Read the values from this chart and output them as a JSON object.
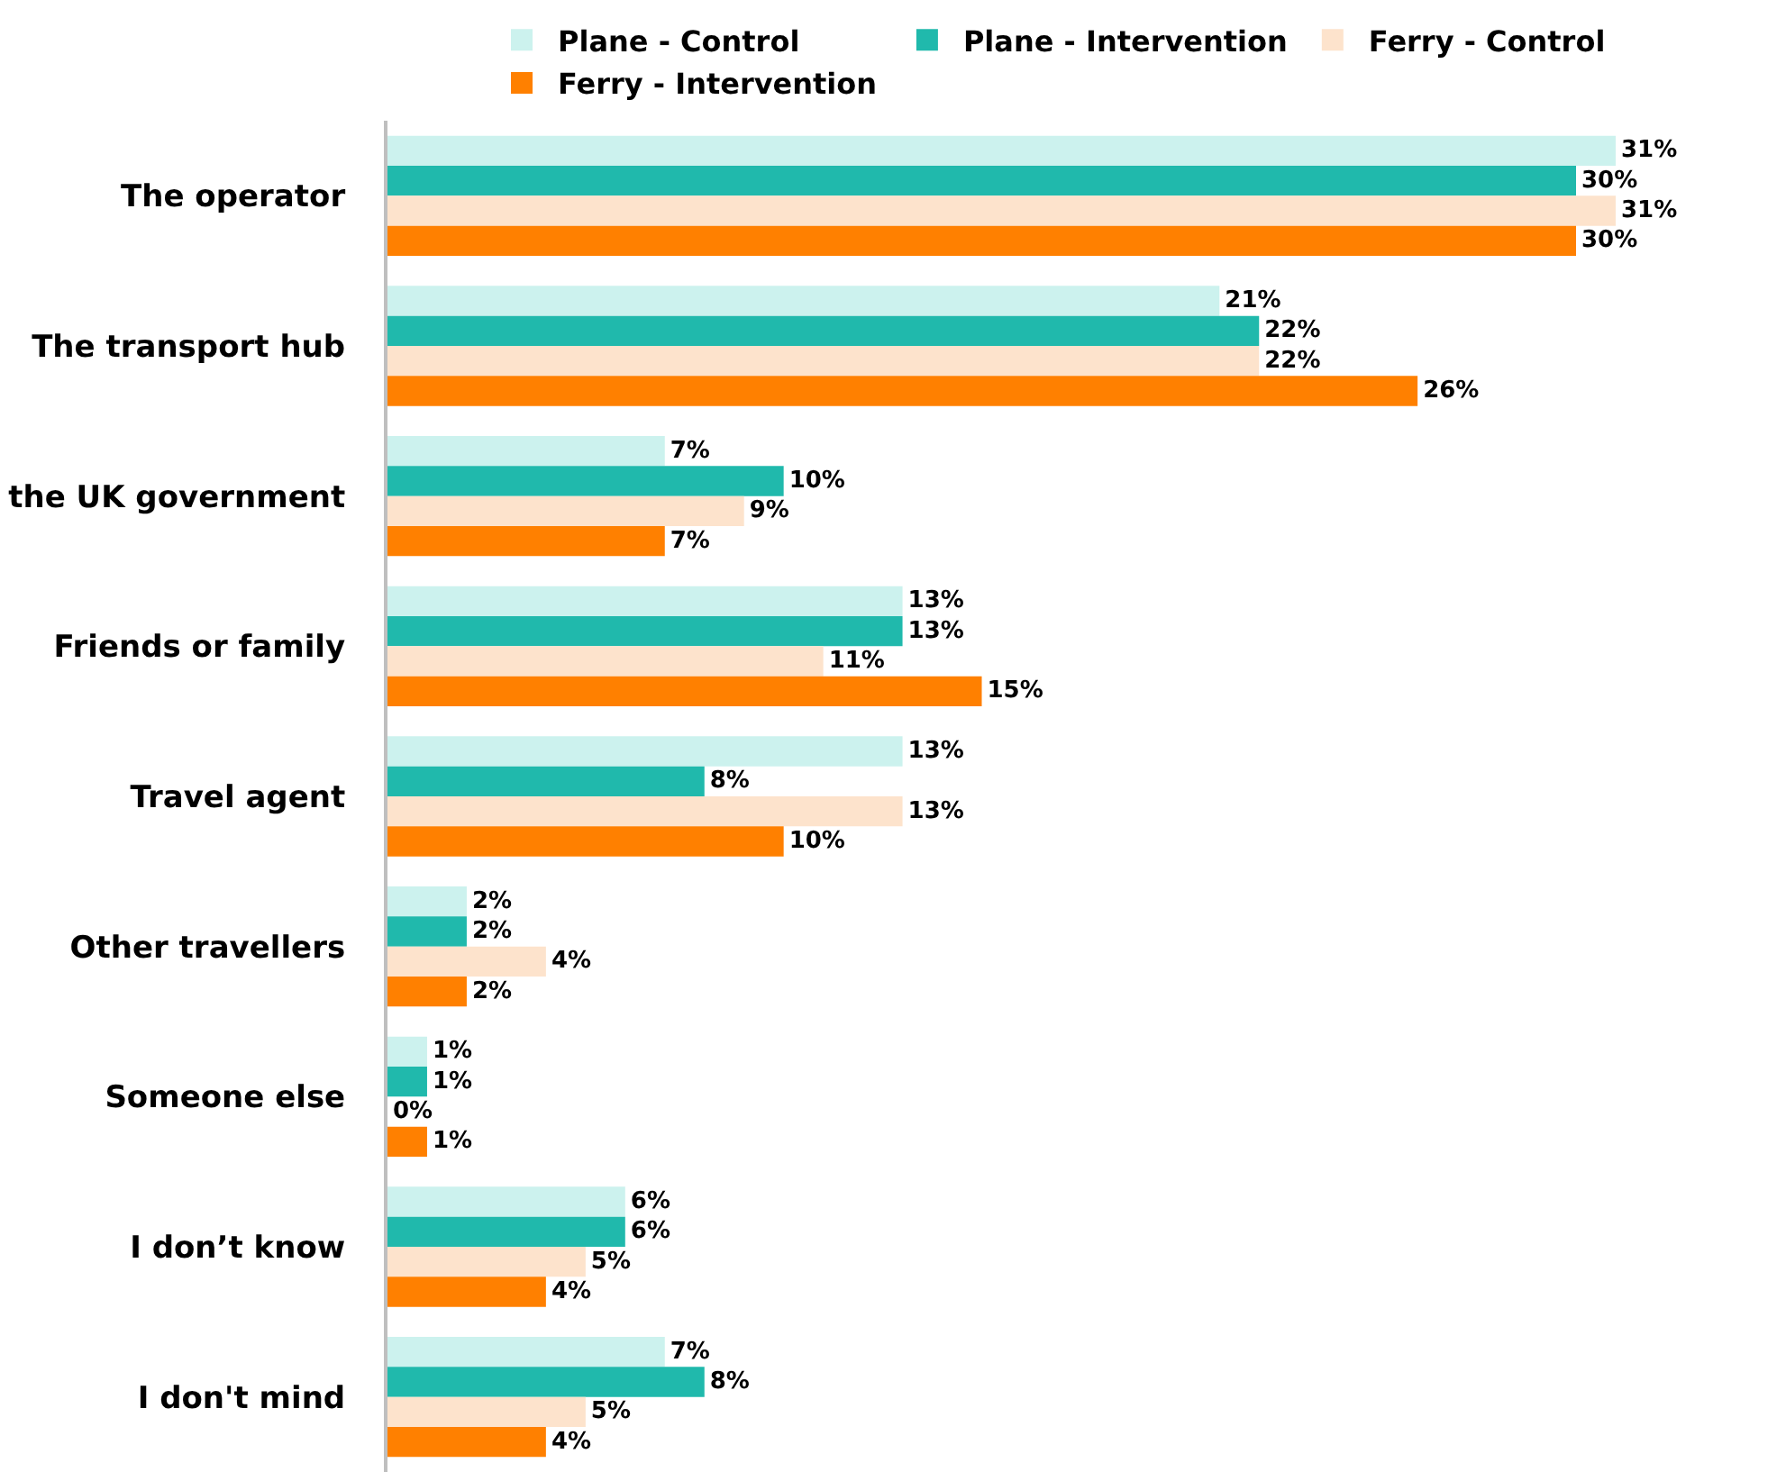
{
  "chart_data": {
    "type": "bar",
    "orientation": "horizontal",
    "legend": "top",
    "categories": [
      "The operator",
      "The transport hub",
      "the UK government",
      "Friends or family",
      "Travel agent",
      "Other travellers",
      "Someone else",
      "I don’t know",
      "I don't mind"
    ],
    "series": [
      {
        "name": "Plane - Control",
        "color": "#ccf2ee",
        "values": [
          31,
          21,
          7,
          13,
          13,
          2,
          1,
          6,
          7
        ],
        "value_labels": [
          "31%",
          "21%",
          "7%",
          "13%",
          "13%",
          "2%",
          "1%",
          "6%",
          "7%"
        ]
      },
      {
        "name": "Plane - Intervention",
        "color": "#20b9ac",
        "values": [
          30,
          22,
          10,
          13,
          8,
          2,
          1,
          6,
          8
        ],
        "value_labels": [
          "30%",
          "22%",
          "10%",
          "13%",
          "8%",
          "2%",
          "1%",
          "6%",
          "8%"
        ]
      },
      {
        "name": "Ferry - Control",
        "color": "#fde3cc",
        "values": [
          31,
          22,
          9,
          11,
          13,
          4,
          0,
          5,
          5
        ],
        "value_labels": [
          "31%",
          "22%",
          "9%",
          "11%",
          "13%",
          "4%",
          "0%",
          "5%",
          "5%"
        ]
      },
      {
        "name": "Ferry - Intervention",
        "color": "#ff8000",
        "values": [
          30,
          26,
          7,
          15,
          10,
          2,
          1,
          4,
          4
        ],
        "value_labels": [
          "30%",
          "26%",
          "7%",
          "15%",
          "10%",
          "2%",
          "1%",
          "4%",
          "4%"
        ]
      }
    ]
  }
}
